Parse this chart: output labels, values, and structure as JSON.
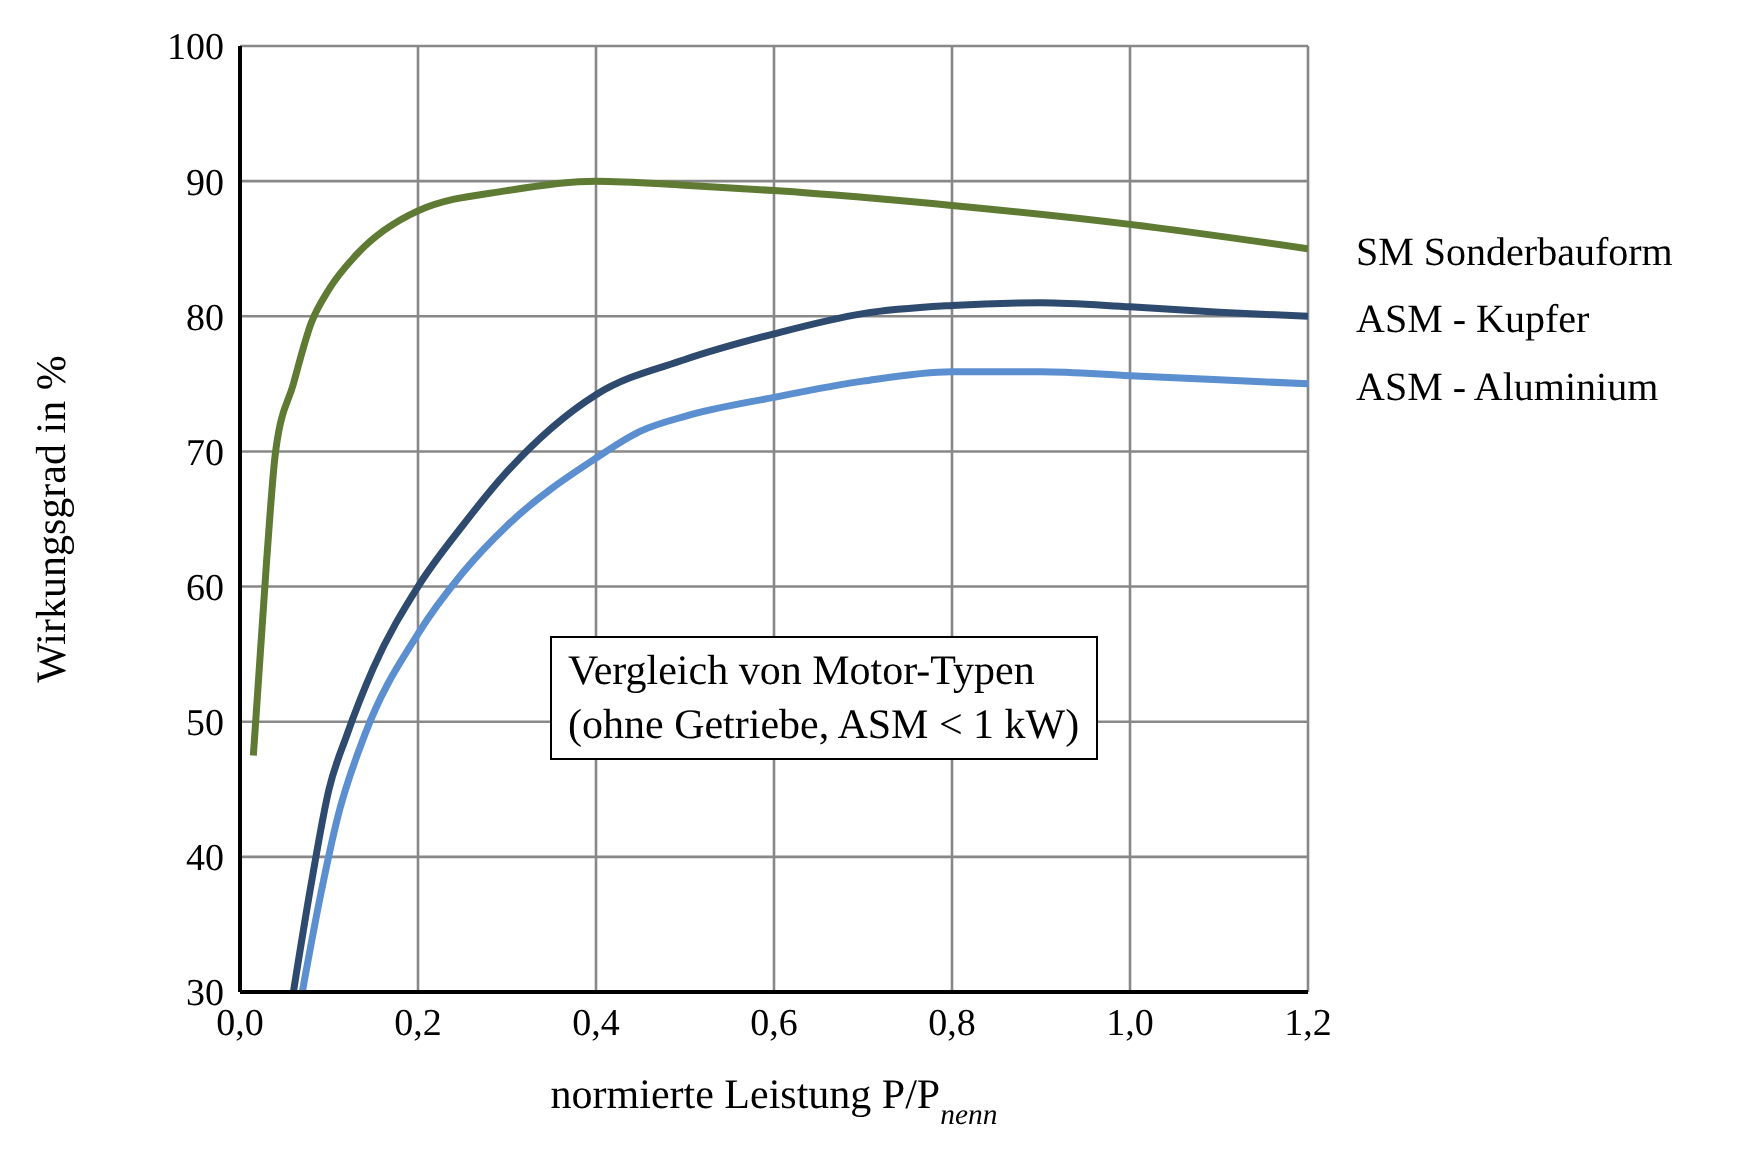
{
  "chart_data": {
    "type": "line",
    "xlabel": "normierte Leistung P/P$_{nenn}$",
    "ylabel": "Wirkungsgrad in %",
    "annotations": [
      "Vergleich von Motor-Typen\n(ohne Getriebe, ASM < 1 kW)"
    ],
    "xlim": [
      0,
      1.2
    ],
    "xticks": [
      {
        "value": 0,
        "label": "0,0"
      },
      {
        "value": 0.2,
        "label": "0,2"
      },
      {
        "value": 0.4,
        "label": "0,4"
      },
      {
        "value": 0.6,
        "label": "0,6"
      },
      {
        "value": 0.8,
        "label": "0,8"
      },
      {
        "value": 1,
        "label": "1,0"
      },
      {
        "value": 1.2,
        "label": "1,2"
      }
    ],
    "ylim": [
      30,
      100
    ],
    "yticks": [
      30,
      40,
      50,
      60,
      70,
      80,
      90,
      100
    ],
    "grid": true,
    "marker": "none",
    "line_style": "solid",
    "series": [
      {
        "name": "SM Sonderbauform",
        "color": "#5f7a32",
        "x": [
          0.015,
          0.03,
          0.04,
          0.06,
          0.08,
          0.1,
          0.13,
          0.2,
          0.3,
          0.4,
          0.5,
          0.6,
          0.8,
          1.0,
          1.2
        ],
        "values": [
          47.5,
          62,
          70,
          75,
          79.5,
          82,
          84.5,
          87.8,
          89.3,
          90,
          89.7,
          89.3,
          88.2,
          86.8,
          85
        ]
      },
      {
        "name": "ASM - Kupfer",
        "color": "#2e4a6e",
        "x": [
          0.06,
          0.08,
          0.1,
          0.12,
          0.15,
          0.2,
          0.25,
          0.3,
          0.4,
          0.5,
          0.6,
          0.7,
          0.8,
          0.9,
          1.0,
          1.1,
          1.2
        ],
        "values": [
          30,
          38,
          45,
          49,
          54,
          60,
          64.5,
          68.5,
          74.2,
          76.8,
          78.7,
          80.2,
          80.8,
          81,
          80.7,
          80.3,
          80
        ]
      },
      {
        "name": "ASM - Aluminium",
        "color": "#5b8fd0",
        "x": [
          0.07,
          0.09,
          0.11,
          0.14,
          0.2,
          0.25,
          0.3,
          0.4,
          0.45,
          0.5,
          0.6,
          0.7,
          0.8,
          0.9,
          1.0,
          1.2
        ],
        "values": [
          30,
          37,
          43,
          49,
          56.5,
          61,
          64.5,
          69.5,
          71.5,
          72.6,
          74,
          75.2,
          75.9,
          75.9,
          75.6,
          75
        ]
      }
    ]
  }
}
